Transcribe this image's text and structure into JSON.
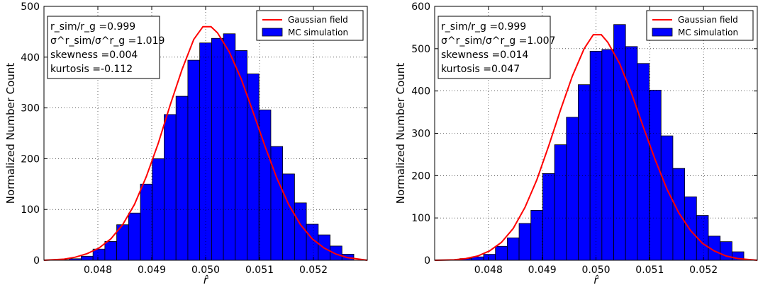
{
  "chart_data": [
    {
      "type": "bar",
      "title": "",
      "xlabel": "r̂",
      "ylabel": "Normalized Number Count",
      "xlim": [
        0.047,
        0.053
      ],
      "ylim": [
        0,
        500
      ],
      "xticks": [
        "0.048",
        "0.049",
        "0.050",
        "0.051",
        "0.052"
      ],
      "yticks": [
        "0",
        "100",
        "200",
        "300",
        "400",
        "500"
      ],
      "grid": true,
      "legend_position": "top-right",
      "bin_width": 0.00022,
      "series": [
        {
          "name": "MC simulation",
          "kind": "histogram",
          "color": "#0000ff",
          "bin_centers": [
            0.04736,
            0.04758,
            0.0478,
            0.04802,
            0.04824,
            0.04846,
            0.04868,
            0.0489,
            0.04912,
            0.04934,
            0.04956,
            0.04978,
            0.05,
            0.05022,
            0.05044,
            0.05066,
            0.05088,
            0.0511,
            0.05132,
            0.05154,
            0.05176,
            0.05198,
            0.0522,
            0.05242,
            0.05264
          ],
          "values": [
            1,
            3,
            8,
            22,
            37,
            70,
            93,
            150,
            200,
            287,
            323,
            394,
            428,
            437,
            446,
            413,
            367,
            296,
            224,
            170,
            113,
            71,
            50,
            28,
            12
          ]
        },
        {
          "name": "Gaussian field",
          "kind": "line",
          "color": "#ff0000",
          "x": [
            0.047,
            0.04736,
            0.04758,
            0.0478,
            0.04802,
            0.04824,
            0.04846,
            0.04868,
            0.0489,
            0.04912,
            0.04934,
            0.04956,
            0.04978,
            0.04995,
            0.0501,
            0.05022,
            0.05044,
            0.05066,
            0.05088,
            0.0511,
            0.05132,
            0.05154,
            0.05176,
            0.05198,
            0.0522,
            0.05242,
            0.05264,
            0.053
          ],
          "y": [
            0,
            2,
            6,
            13,
            24,
            42,
            70,
            110,
            165,
            230,
            305,
            375,
            435,
            460,
            460,
            448,
            410,
            357,
            292,
            225,
            162,
            110,
            70,
            42,
            24,
            12,
            5,
            0
          ]
        }
      ],
      "stats": {
        "r_ratio_label": "r_sim/r_g =0.999",
        "sigma_ratio_label": "σ^r_sim/σ^r_g =1.019",
        "skewness": "skewness =0.004",
        "kurtosis": "kurtosis =-0.112"
      }
    },
    {
      "type": "bar",
      "title": "",
      "xlabel": "r̂",
      "ylabel": "Normalized Number Count",
      "xlim": [
        0.047,
        0.053
      ],
      "ylim": [
        0,
        600
      ],
      "xticks": [
        "0.048",
        "0.049",
        "0.050",
        "0.051",
        "0.052"
      ],
      "yticks": [
        "0",
        "100",
        "200",
        "300",
        "400",
        "500",
        "600"
      ],
      "grid": true,
      "legend_position": "top-right",
      "bin_width": 0.00022,
      "series": [
        {
          "name": "MC simulation",
          "kind": "histogram",
          "color": "#0000ff",
          "bin_centers": [
            0.04736,
            0.04758,
            0.0478,
            0.04802,
            0.04824,
            0.04846,
            0.04868,
            0.0489,
            0.04912,
            0.04934,
            0.04956,
            0.04978,
            0.05,
            0.05022,
            0.05044,
            0.05066,
            0.05088,
            0.0511,
            0.05132,
            0.05154,
            0.05176,
            0.05198,
            0.0522,
            0.05242,
            0.05264
          ],
          "values": [
            1,
            4,
            8,
            14,
            33,
            53,
            87,
            118,
            205,
            273,
            338,
            415,
            494,
            498,
            557,
            505,
            465,
            402,
            294,
            217,
            150,
            106,
            57,
            44,
            20
          ]
        },
        {
          "name": "Gaussian field",
          "kind": "line",
          "color": "#ff0000",
          "x": [
            0.047,
            0.04736,
            0.04758,
            0.0478,
            0.04802,
            0.04824,
            0.04846,
            0.04868,
            0.0489,
            0.04912,
            0.04934,
            0.04956,
            0.04978,
            0.04995,
            0.0501,
            0.05022,
            0.05044,
            0.05066,
            0.05088,
            0.0511,
            0.05132,
            0.05154,
            0.05176,
            0.05198,
            0.0522,
            0.05242,
            0.05264,
            0.053
          ],
          "y": [
            0,
            1,
            4,
            10,
            22,
            42,
            75,
            125,
            190,
            270,
            355,
            435,
            500,
            533,
            533,
            515,
            465,
            395,
            315,
            238,
            168,
            112,
            70,
            40,
            22,
            10,
            4,
            0
          ]
        }
      ],
      "stats": {
        "r_ratio_label": "r_sim/r_g =0.999",
        "sigma_ratio_label": "σ^r_sim/σ^r_g =1.007",
        "skewness": "skewness =0.014",
        "kurtosis": "kurtosis =0.047"
      }
    }
  ]
}
